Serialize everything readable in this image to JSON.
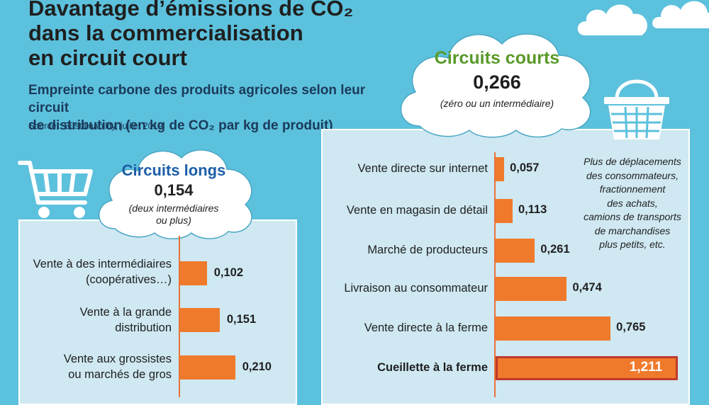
{
  "title_lines": [
    "Davantage d’émissions de CO₂",
    "dans la commercialisation",
    "en circuit court"
  ],
  "subtitle_lines": [
    "Empreinte carbone des produits agricoles selon leur circuit",
    "de distribution (en kg de CO₂ par kg de produit)"
  ],
  "source": "Source : Sustainability, juillet 2019",
  "colors": {
    "background": "#5cc1dd",
    "bar": "#f07a2b",
    "highlight_border": "#c0392b",
    "long_title": "#1c5fa8",
    "short_title": "#5a9a2a"
  },
  "icons": [
    "shopping-cart-icon",
    "shopping-basket-icon",
    "cloud-icon"
  ],
  "long": {
    "title": "Circuits longs",
    "value": "0,154",
    "note_lines": [
      "(deux intermédiaires",
      "ou plus)"
    ]
  },
  "short": {
    "title": "Circuits courts",
    "value": "0,266",
    "note": "(zéro ou un intermédiaire)"
  },
  "short_note_lines": [
    "Plus de déplacements",
    "des consommateurs,",
    "fractionnement",
    "des achats,",
    "camions de transports",
    "de marchandises",
    "plus petits, etc."
  ],
  "chart_data": [
    {
      "type": "bar",
      "orientation": "horizontal",
      "title": "Circuits longs",
      "categories": [
        "Vente à des intermédiaires (coopératives…)",
        "Vente à la grande distribution",
        "Vente aux grossistes ou marchés de gros"
      ],
      "category_lines": [
        [
          "Vente à des intermédiaires",
          "(coopératives…)"
        ],
        [
          "Vente à la grande",
          "distribution"
        ],
        [
          "Vente aux grossistes",
          "ou marchés de gros"
        ]
      ],
      "values": [
        0.102,
        0.151,
        0.21
      ],
      "labels": [
        "0,102",
        "0,151",
        "0,210"
      ],
      "unit": "kg de CO₂ par kg de produit"
    },
    {
      "type": "bar",
      "orientation": "horizontal",
      "title": "Circuits courts",
      "categories": [
        "Vente directe sur internet",
        "Vente en magasin de détail",
        "Marché de producteurs",
        "Livraison au consommateur",
        "Vente directe à la ferme",
        "Cueillette à la ferme"
      ],
      "values": [
        0.057,
        0.113,
        0.261,
        0.474,
        0.765,
        1.211
      ],
      "labels": [
        "0,057",
        "0,113",
        "0,261",
        "0,474",
        "0,765",
        "1,211"
      ],
      "highlight": "Cueillette à la ferme",
      "unit": "kg de CO₂ par kg de produit"
    }
  ]
}
